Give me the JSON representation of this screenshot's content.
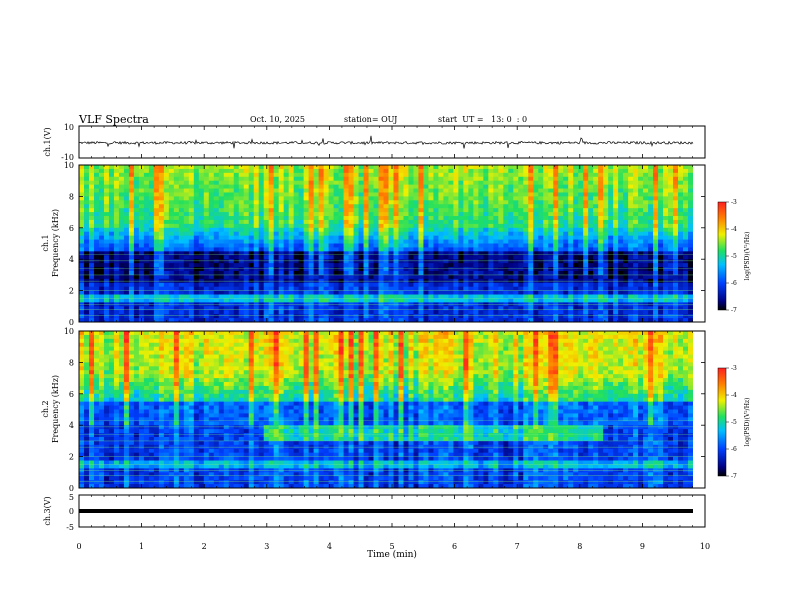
{
  "header": {
    "title": "VLF Spectra",
    "date": "Oct. 10, 2025",
    "station": "station= OUJ",
    "start": "start  UT =   13: 0  : 0"
  },
  "chart_data": [
    {
      "type": "line",
      "ylabel": "ch.1(V)",
      "ylim": [
        -10,
        10
      ],
      "yticks": [
        "10",
        "-10"
      ],
      "xlim": [
        0,
        10
      ],
      "description_series": "broadband waveform, mean near -0.5 V with small fluctuations and a few spikes"
    },
    {
      "type": "heatmap",
      "ylabel_top": "ch.1",
      "ylabel": "Frequency (kHz)",
      "ylim": [
        0,
        10
      ],
      "yticks": [
        "0",
        "2",
        "4",
        "6",
        "8",
        "10"
      ],
      "xlim": [
        0,
        10
      ],
      "colorbar": {
        "label": "log(PSD)(V²/Hz)",
        "range": [
          -7,
          -3
        ],
        "ticks": [
          "-3",
          "-4",
          "-5",
          "-6",
          "-7"
        ]
      }
    },
    {
      "type": "heatmap",
      "ylabel_top": "ch.2",
      "ylabel": "Frequency (kHz)",
      "ylim": [
        0,
        10
      ],
      "yticks": [
        "0",
        "2",
        "4",
        "6",
        "8",
        "10"
      ],
      "xlim": [
        0,
        10
      ],
      "colorbar": {
        "label": "log(PSD)(V²/Hz)",
        "range": [
          -7,
          -3
        ],
        "ticks": [
          "-3",
          "-4",
          "-5",
          "-6",
          "-7"
        ]
      }
    },
    {
      "type": "line",
      "ylabel": "ch.3(V)",
      "ylim": [
        -5,
        5
      ],
      "yticks": [
        "5",
        "0",
        "-5"
      ],
      "xlim": [
        0,
        10
      ],
      "value": -0.5
    }
  ],
  "xaxis": {
    "label": "Time (min)",
    "ticks": [
      "0",
      "1",
      "2",
      "3",
      "4",
      "5",
      "6",
      "7",
      "8",
      "9",
      "10"
    ]
  },
  "colors": {
    "low": "#000080",
    "mid_low": "#0060ff",
    "mid": "#20e060",
    "mid_high": "#f0f000",
    "high": "#e01010"
  }
}
